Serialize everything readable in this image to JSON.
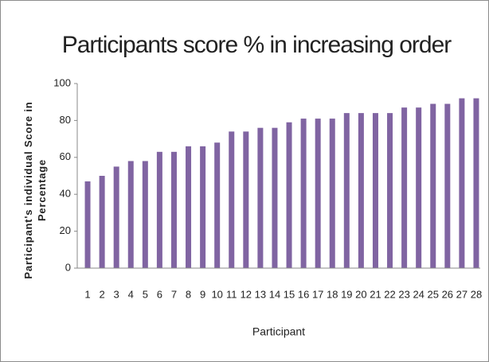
{
  "chart_data": {
    "type": "bar",
    "title": "Participants score % in increasing order",
    "xlabel": "Participant",
    "ylabel": "Participant's individual Score in Percentage",
    "categories": [
      "1",
      "2",
      "3",
      "4",
      "5",
      "6",
      "7",
      "8",
      "9",
      "10",
      "11",
      "12",
      "13",
      "14",
      "15",
      "16",
      "17",
      "18",
      "19",
      "20",
      "21",
      "22",
      "23",
      "24",
      "25",
      "26",
      "27",
      "28"
    ],
    "values": [
      47,
      50,
      55,
      58,
      58,
      63,
      63,
      66,
      66,
      68,
      74,
      74,
      76,
      76,
      79,
      81,
      81,
      81,
      84,
      84,
      84,
      84,
      87,
      87,
      89,
      89,
      92,
      92
    ],
    "color": "#8064a2",
    "ylim": [
      0,
      100
    ],
    "yticks": [
      0,
      20,
      40,
      60,
      80,
      100
    ],
    "grid": false
  }
}
